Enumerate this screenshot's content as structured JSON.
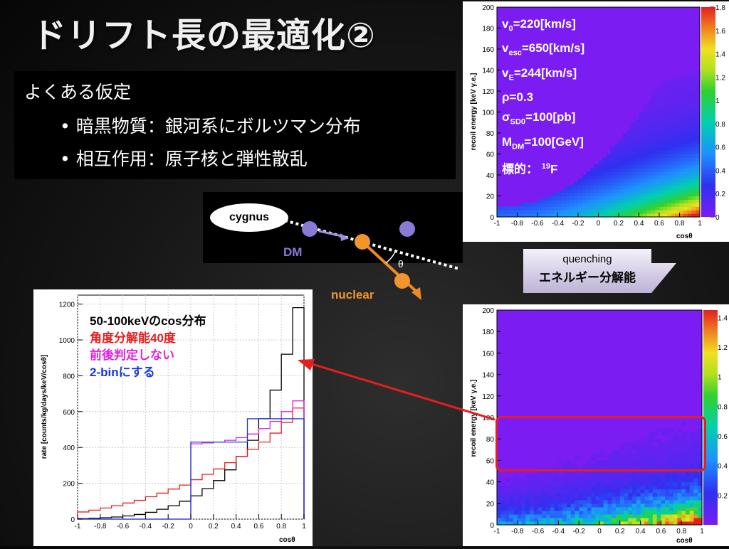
{
  "slide_title": "ドリフト長の最適化②",
  "assumptions": {
    "heading": "よくある仮定",
    "bullets": [
      "暗黒物質：銀河系にボルツマン分布",
      "相互作用：原子核と弾性散乱"
    ]
  },
  "scatter_diagram": {
    "cygnus_label": "cygnus",
    "dm_label": "DM",
    "nuclear_label": "nuclear",
    "theta_label": "θ"
  },
  "arrow_label": {
    "line1": "quenching",
    "line2": "エネルギー分解能"
  },
  "info_box": [
    "v0=220[km/s]",
    "vesc=650[km/s]",
    "vE=244[km/s]",
    "ρ=0.3",
    "σSD0=100[pb]",
    "MDM=100[GeV]",
    "標的： 19F"
  ],
  "hist_annotation": {
    "line1": "50-100keVのcos分布",
    "line2": "角度分解能40度",
    "line3": "前後判定しない",
    "line4": "2-binにする"
  },
  "colors": {
    "red": "#e81e1e",
    "magenta": "#e020e0",
    "blue": "#1a38e0",
    "black": "#000000",
    "purple_bg": "#7a1cf2"
  },
  "chart_data": [
    {
      "type": "heatmap",
      "xlabel": "cosθ",
      "ylabel": "recoil energy [keV γ.e.]",
      "xlim": [
        -1,
        1
      ],
      "ylim": [
        0,
        200
      ],
      "xticks": [
        "-1",
        "-0.8",
        "-0.6",
        "-0.4",
        "-0.2",
        "0",
        "0.2",
        "0.4",
        "0.6",
        "0.8",
        "1"
      ],
      "yticks": [
        "0",
        "20",
        "40",
        "60",
        "80",
        "100",
        "120",
        "140",
        "160",
        "180",
        "200"
      ],
      "colorbar_ticks": [
        "0",
        "0.2",
        "0.4",
        "0.6",
        "0.8",
        "1",
        "1.2",
        "1.4",
        "1.6",
        "1.8"
      ],
      "zlim": [
        0,
        1.8
      ]
    },
    {
      "type": "heatmap",
      "xlabel": "cosθ",
      "ylabel": "recoil energy [keV γ.e.]",
      "xlim": [
        -1,
        1
      ],
      "ylim": [
        0,
        200
      ],
      "xticks": [
        "-1",
        "-0.8",
        "-0.6",
        "-0.4",
        "-0.2",
        "0",
        "0.2",
        "0.4",
        "0.6",
        "0.8",
        "1"
      ],
      "yticks": [
        "0",
        "20",
        "40",
        "60",
        "80",
        "100",
        "120",
        "140",
        "160",
        "180",
        "200"
      ],
      "colorbar_ticks": [
        "0.2",
        "0.4",
        "0.6",
        "0.8",
        "1",
        "1.2",
        "1.4"
      ],
      "zlim": [
        0,
        1.45
      ],
      "highlight_band": [
        52,
        100
      ]
    },
    {
      "type": "line",
      "xlabel": "cosθ",
      "ylabel": "rate [counts/kg/days/keV/cosθ]",
      "xlim": [
        -1,
        1
      ],
      "ylim": [
        0,
        1250
      ],
      "xticks": [
        "-1",
        "-0.8",
        "-0.6",
        "-0.4",
        "-0.2",
        "0",
        "0.2",
        "0.4",
        "0.6",
        "0.8",
        "1"
      ],
      "yticks": [
        "0",
        "200",
        "400",
        "600",
        "800",
        "1000",
        "1200"
      ],
      "x": [
        -0.95,
        -0.85,
        -0.75,
        -0.65,
        -0.55,
        -0.45,
        -0.35,
        -0.25,
        -0.15,
        -0.05,
        0.05,
        0.15,
        0.25,
        0.35,
        0.45,
        0.55,
        0.65,
        0.75,
        0.85,
        0.95
      ],
      "series": [
        {
          "color": "#000000",
          "values": [
            3,
            5,
            8,
            12,
            18,
            26,
            38,
            55,
            75,
            100,
            130,
            170,
            215,
            275,
            350,
            440,
            560,
            720,
            920,
            1180
          ]
        },
        {
          "color": "#e81e1e",
          "values": [
            40,
            50,
            62,
            75,
            90,
            105,
            125,
            145,
            168,
            190,
            220,
            250,
            280,
            315,
            350,
            390,
            430,
            480,
            540,
            620
          ]
        },
        {
          "color": "#e020e0",
          "values": [
            0,
            0,
            0,
            0,
            0,
            0,
            0,
            0,
            0,
            0,
            420,
            425,
            430,
            440,
            455,
            475,
            505,
            545,
            600,
            660
          ]
        },
        {
          "color": "#1a38e0",
          "values": [
            0,
            0,
            0,
            0,
            0,
            0,
            0,
            0,
            0,
            0,
            430,
            430,
            430,
            430,
            430,
            560,
            560,
            560,
            560,
            560
          ]
        }
      ]
    }
  ]
}
